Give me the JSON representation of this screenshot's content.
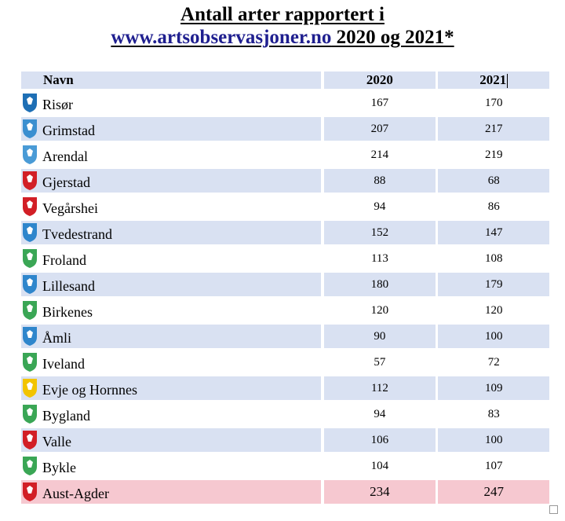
{
  "title": {
    "line1": "Antall arter rapportert i",
    "link": "www.artsobservasjoner.no",
    "line2_rest": " 2020 og 2021*"
  },
  "table": {
    "headers": [
      "Navn",
      "2020",
      "2021"
    ],
    "rows": [
      {
        "name": "Risør",
        "y2020": "167",
        "y2021": "170",
        "crest": "risor-crest-icon",
        "color": "#1e6fb5"
      },
      {
        "name": "Grimstad",
        "y2020": "207",
        "y2021": "217",
        "crest": "grimstad-crest-icon",
        "color": "#3b8fd0"
      },
      {
        "name": "Arendal",
        "y2020": "214",
        "y2021": "219",
        "crest": "arendal-crest-icon",
        "color": "#4a9bd6"
      },
      {
        "name": "Gjerstad",
        "y2020": "88",
        "y2021": "68",
        "crest": "gjerstad-crest-icon",
        "color": "#d21f26"
      },
      {
        "name": "Vegårshei",
        "y2020": "94",
        "y2021": "86",
        "crest": "vegarshei-crest-icon",
        "color": "#d21f26"
      },
      {
        "name": "Tvedestrand",
        "y2020": "152",
        "y2021": "147",
        "crest": "tvedestrand-crest-icon",
        "color": "#2f86cc"
      },
      {
        "name": "Froland",
        "y2020": "113",
        "y2021": "108",
        "crest": "froland-crest-icon",
        "color": "#3aa655"
      },
      {
        "name": "Lillesand",
        "y2020": "180",
        "y2021": "179",
        "crest": "lillesand-crest-icon",
        "color": "#2f86cc"
      },
      {
        "name": "Birkenes",
        "y2020": "120",
        "y2021": "120",
        "crest": "birkenes-crest-icon",
        "color": "#3aa655"
      },
      {
        "name": "Åmli",
        "y2020": "90",
        "y2021": "100",
        "crest": "amli-crest-icon",
        "color": "#2f86cc"
      },
      {
        "name": "Iveland",
        "y2020": "57",
        "y2021": "72",
        "crest": "iveland-crest-icon",
        "color": "#3aa655"
      },
      {
        "name": "Evje og Hornnes",
        "y2020": "112",
        "y2021": "109",
        "crest": "evje-crest-icon",
        "color": "#f2c400"
      },
      {
        "name": "Bygland",
        "y2020": "94",
        "y2021": "83",
        "crest": "bygland-crest-icon",
        "color": "#3aa655"
      },
      {
        "name": "Valle",
        "y2020": "106",
        "y2021": "100",
        "crest": "valle-crest-icon",
        "color": "#d21f26"
      },
      {
        "name": "Bykle",
        "y2020": "104",
        "y2021": "107",
        "crest": "bykle-crest-icon",
        "color": "#3aa655"
      },
      {
        "name": "Aust-Agder",
        "y2020": "234",
        "y2021": "247",
        "crest": "aust-agder-crest-icon",
        "color": "#d21f26"
      }
    ]
  }
}
